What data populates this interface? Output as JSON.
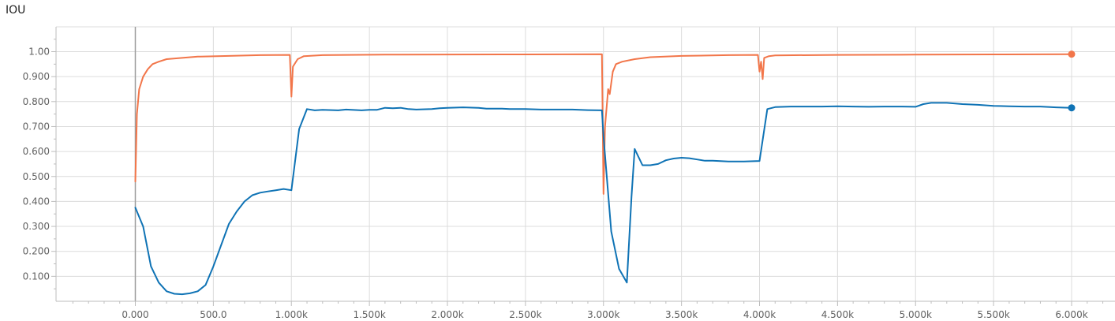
{
  "chart_data": {
    "type": "line",
    "title": "IOU",
    "xlabel": "",
    "ylabel": "",
    "xlim": [
      -500,
      6200
    ],
    "ylim": [
      0,
      1.1
    ],
    "grid": true,
    "x_ticks": [
      {
        "value": 0,
        "label": "0.000"
      },
      {
        "value": 500,
        "label": "500.0"
      },
      {
        "value": 1000,
        "label": "1.000k"
      },
      {
        "value": 1500,
        "label": "1.500k"
      },
      {
        "value": 2000,
        "label": "2.000k"
      },
      {
        "value": 2500,
        "label": "2.500k"
      },
      {
        "value": 3000,
        "label": "3.000k"
      },
      {
        "value": 3500,
        "label": "3.500k"
      },
      {
        "value": 4000,
        "label": "4.000k"
      },
      {
        "value": 4500,
        "label": "4.500k"
      },
      {
        "value": 5000,
        "label": "5.000k"
      },
      {
        "value": 5500,
        "label": "5.500k"
      },
      {
        "value": 6000,
        "label": "6.000k"
      }
    ],
    "y_ticks": [
      {
        "value": 0.1,
        "label": "0.100"
      },
      {
        "value": 0.2,
        "label": "0.200"
      },
      {
        "value": 0.3,
        "label": "0.300"
      },
      {
        "value": 0.4,
        "label": "0.400"
      },
      {
        "value": 0.5,
        "label": "0.500"
      },
      {
        "value": 0.6,
        "label": "0.600"
      },
      {
        "value": 0.7,
        "label": "0.700"
      },
      {
        "value": 0.8,
        "label": "0.800"
      },
      {
        "value": 0.9,
        "label": "0.900"
      },
      {
        "value": 1.0,
        "label": "1.00"
      }
    ],
    "series": [
      {
        "color": "#f2764a",
        "points": [
          [
            0,
            0.48
          ],
          [
            10,
            0.75
          ],
          [
            25,
            0.85
          ],
          [
            50,
            0.9
          ],
          [
            80,
            0.93
          ],
          [
            110,
            0.95
          ],
          [
            150,
            0.96
          ],
          [
            200,
            0.97
          ],
          [
            300,
            0.975
          ],
          [
            400,
            0.98
          ],
          [
            600,
            0.983
          ],
          [
            800,
            0.986
          ],
          [
            990,
            0.987
          ],
          [
            1000,
            0.82
          ],
          [
            1010,
            0.94
          ],
          [
            1040,
            0.97
          ],
          [
            1080,
            0.982
          ],
          [
            1200,
            0.986
          ],
          [
            1600,
            0.988
          ],
          [
            2500,
            0.989
          ],
          [
            2990,
            0.99
          ],
          [
            3000,
            0.43
          ],
          [
            3010,
            0.7
          ],
          [
            3030,
            0.85
          ],
          [
            3040,
            0.83
          ],
          [
            3060,
            0.92
          ],
          [
            3080,
            0.95
          ],
          [
            3120,
            0.96
          ],
          [
            3200,
            0.97
          ],
          [
            3300,
            0.978
          ],
          [
            3500,
            0.983
          ],
          [
            3800,
            0.986
          ],
          [
            3990,
            0.987
          ],
          [
            4000,
            0.92
          ],
          [
            4010,
            0.96
          ],
          [
            4020,
            0.89
          ],
          [
            4030,
            0.975
          ],
          [
            4060,
            0.982
          ],
          [
            4100,
            0.985
          ],
          [
            4500,
            0.987
          ],
          [
            5000,
            0.988
          ],
          [
            5500,
            0.989
          ],
          [
            6000,
            0.99
          ]
        ]
      },
      {
        "color": "#0f73b5",
        "points": [
          [
            0,
            0.375
          ],
          [
            50,
            0.3
          ],
          [
            100,
            0.14
          ],
          [
            150,
            0.075
          ],
          [
            200,
            0.04
          ],
          [
            250,
            0.03
          ],
          [
            300,
            0.028
          ],
          [
            350,
            0.032
          ],
          [
            400,
            0.04
          ],
          [
            450,
            0.065
          ],
          [
            500,
            0.14
          ],
          [
            600,
            0.31
          ],
          [
            650,
            0.36
          ],
          [
            700,
            0.4
          ],
          [
            750,
            0.425
          ],
          [
            800,
            0.435
          ],
          [
            850,
            0.44
          ],
          [
            900,
            0.445
          ],
          [
            950,
            0.45
          ],
          [
            1000,
            0.445
          ],
          [
            1050,
            0.69
          ],
          [
            1100,
            0.77
          ],
          [
            1150,
            0.765
          ],
          [
            1200,
            0.767
          ],
          [
            1300,
            0.765
          ],
          [
            1350,
            0.768
          ],
          [
            1450,
            0.765
          ],
          [
            1500,
            0.767
          ],
          [
            1550,
            0.767
          ],
          [
            1600,
            0.775
          ],
          [
            1650,
            0.773
          ],
          [
            1700,
            0.775
          ],
          [
            1750,
            0.77
          ],
          [
            1800,
            0.768
          ],
          [
            1900,
            0.77
          ],
          [
            1950,
            0.773
          ],
          [
            2000,
            0.775
          ],
          [
            2100,
            0.777
          ],
          [
            2200,
            0.775
          ],
          [
            2250,
            0.772
          ],
          [
            2350,
            0.772
          ],
          [
            2400,
            0.77
          ],
          [
            2500,
            0.77
          ],
          [
            2600,
            0.768
          ],
          [
            2700,
            0.768
          ],
          [
            2800,
            0.768
          ],
          [
            2900,
            0.766
          ],
          [
            2990,
            0.765
          ],
          [
            3000,
            0.66
          ],
          [
            3050,
            0.28
          ],
          [
            3100,
            0.13
          ],
          [
            3150,
            0.075
          ],
          [
            3180,
            0.42
          ],
          [
            3200,
            0.61
          ],
          [
            3250,
            0.545
          ],
          [
            3300,
            0.545
          ],
          [
            3350,
            0.55
          ],
          [
            3400,
            0.565
          ],
          [
            3450,
            0.572
          ],
          [
            3500,
            0.575
          ],
          [
            3550,
            0.573
          ],
          [
            3600,
            0.568
          ],
          [
            3650,
            0.563
          ],
          [
            3700,
            0.563
          ],
          [
            3800,
            0.56
          ],
          [
            3900,
            0.56
          ],
          [
            4000,
            0.562
          ],
          [
            4050,
            0.77
          ],
          [
            4100,
            0.778
          ],
          [
            4200,
            0.78
          ],
          [
            4300,
            0.78
          ],
          [
            4400,
            0.78
          ],
          [
            4500,
            0.781
          ],
          [
            4600,
            0.78
          ],
          [
            4700,
            0.779
          ],
          [
            4800,
            0.78
          ],
          [
            4900,
            0.78
          ],
          [
            5000,
            0.779
          ],
          [
            5050,
            0.79
          ],
          [
            5100,
            0.795
          ],
          [
            5200,
            0.795
          ],
          [
            5300,
            0.79
          ],
          [
            5400,
            0.787
          ],
          [
            5500,
            0.783
          ],
          [
            5600,
            0.781
          ],
          [
            5700,
            0.78
          ],
          [
            5800,
            0.78
          ],
          [
            5900,
            0.777
          ],
          [
            6000,
            0.775
          ]
        ]
      }
    ]
  }
}
